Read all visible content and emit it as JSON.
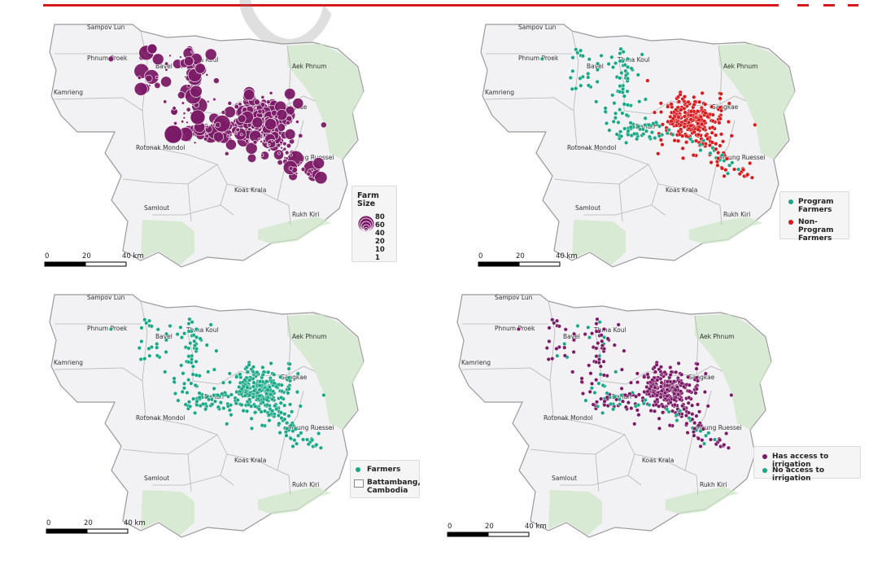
{
  "colors": {
    "accent_red": "#d7191c",
    "farm_size": "#7b1a66",
    "program": "#1aa786",
    "non_program": "#d7191c",
    "farmers": "#1aa786",
    "irrigated": "#7b1a66",
    "not_irrigated": "#1aa786"
  },
  "watermark": "COP",
  "place_names": [
    "Sampov Lun",
    "Phnum Proek",
    "Bavel",
    "Thma Koul",
    "Aek Phnum",
    "Kamrieng",
    "Sangkae",
    "Banan",
    "Rotonak Mondol",
    "Moung Ruessei",
    "Koas Krala",
    "Samlout",
    "Rukh Kiri"
  ],
  "scale_bar": {
    "labels": [
      "0",
      "20",
      "40 km"
    ]
  },
  "maps": [
    {
      "id": "farm-size",
      "legend": {
        "title": "Farm Size",
        "sizes": [
          "80",
          "60",
          "40",
          "20",
          "10",
          "1"
        ]
      }
    },
    {
      "id": "program",
      "legend": {
        "items": [
          {
            "label": "Program Farmers",
            "color": "#1aa786"
          },
          {
            "label": "Non-Program Farmers",
            "color": "#d7191c"
          }
        ]
      }
    },
    {
      "id": "farmers",
      "legend": {
        "items": [
          {
            "label": "Farmers",
            "color": "#1aa786",
            "kind": "dot"
          },
          {
            "label": "Battambang, Cambodia",
            "color": "#ffffff",
            "kind": "box"
          }
        ]
      }
    },
    {
      "id": "irrigation",
      "legend": {
        "items": [
          {
            "label": "Has access to irrigation",
            "color": "#7b1a66"
          },
          {
            "label": "No access to irrigation",
            "color": "#1aa786"
          }
        ]
      }
    }
  ]
}
